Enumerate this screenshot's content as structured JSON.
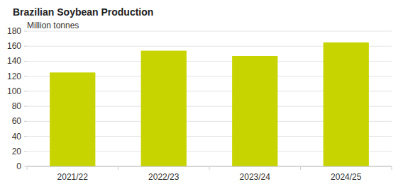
{
  "chart_data": {
    "type": "bar",
    "title": "Brazilian Soybean Production",
    "subtitle": "Million tonnes",
    "categories": [
      "2021/22",
      "2022/23",
      "2023/24",
      "2024/25"
    ],
    "values": [
      125,
      154,
      147,
      165
    ],
    "color": "#c8d400",
    "ylim": [
      0,
      180
    ],
    "yticks": [
      0,
      20,
      40,
      60,
      80,
      100,
      120,
      140,
      160,
      180
    ],
    "grid": true
  }
}
